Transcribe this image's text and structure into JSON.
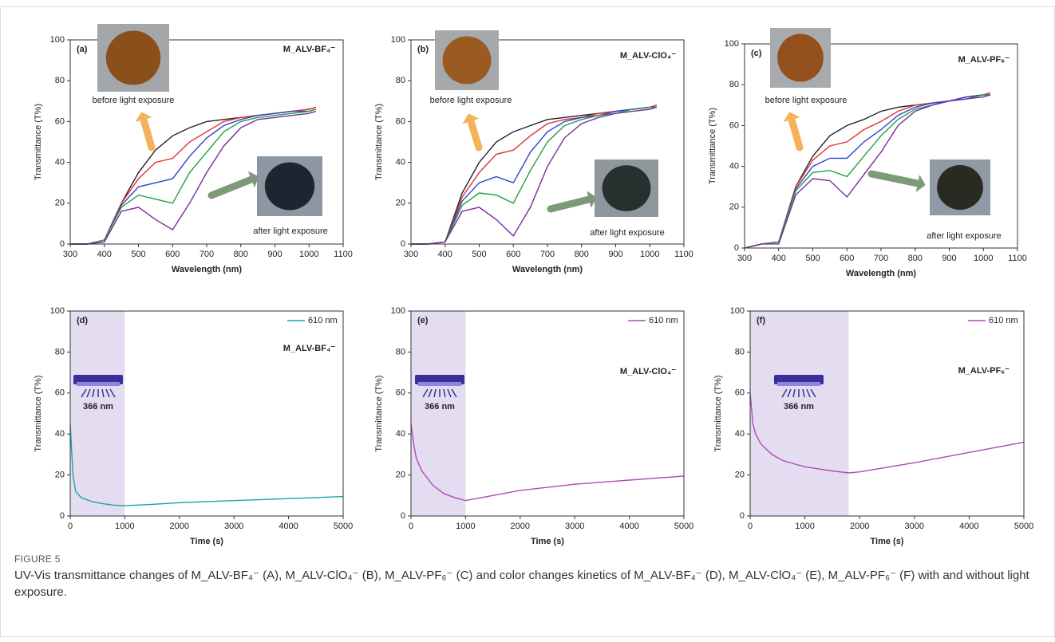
{
  "chart_data": [
    {
      "type": "line",
      "panel_label": "(a)",
      "title": "M_ALV-BF₄⁻",
      "xlabel": "Wavelength (nm)",
      "ylabel": "Transmittance (T%)",
      "x": [
        300,
        350,
        400,
        450,
        500,
        550,
        600,
        650,
        700,
        750,
        800,
        850,
        900,
        950,
        1000,
        1020
      ],
      "series": [
        {
          "color": "#222222",
          "values": [
            0,
            0,
            2,
            20,
            35,
            46,
            53,
            57,
            60,
            61,
            62,
            63,
            64,
            65,
            66,
            67
          ]
        },
        {
          "color": "#e03030",
          "values": [
            0,
            0,
            2,
            20,
            32,
            40,
            42,
            50,
            55,
            60,
            62,
            63,
            64,
            65,
            66,
            67
          ]
        },
        {
          "color": "#3040d0",
          "values": [
            0,
            0,
            2,
            19,
            28,
            30,
            32,
            43,
            52,
            58,
            61,
            63,
            64,
            65,
            65,
            66
          ]
        },
        {
          "color": "#20a040",
          "values": [
            0,
            0,
            2,
            18,
            24,
            22,
            20,
            35,
            45,
            55,
            60,
            62,
            63,
            64,
            65,
            66
          ]
        },
        {
          "color": "#7a2aa0",
          "values": [
            0,
            0,
            1,
            16,
            18,
            12,
            7,
            20,
            35,
            48,
            57,
            61,
            62,
            63,
            64,
            65
          ]
        }
      ],
      "xlim": [
        300,
        1100
      ],
      "xticks": [
        300,
        400,
        500,
        600,
        700,
        800,
        900,
        1000,
        1100
      ],
      "ylim": [
        0,
        100
      ],
      "yticks": [
        0,
        20,
        40,
        60,
        80,
        100
      ],
      "annotations": [
        "before light exposure",
        "after light exposure"
      ]
    },
    {
      "type": "line",
      "panel_label": "(b)",
      "title": "M_ALV-ClO₄⁻",
      "xlabel": "Wavelength (nm)",
      "ylabel": "Transmittance (T%)",
      "x": [
        300,
        350,
        400,
        450,
        500,
        550,
        600,
        650,
        700,
        750,
        800,
        850,
        900,
        950,
        1000,
        1020
      ],
      "series": [
        {
          "color": "#222222",
          "values": [
            0,
            0,
            1,
            25,
            40,
            50,
            55,
            58,
            61,
            62,
            63,
            64,
            65,
            66,
            67,
            68
          ]
        },
        {
          "color": "#e03030",
          "values": [
            0,
            0,
            1,
            23,
            35,
            44,
            46,
            53,
            59,
            61,
            62,
            64,
            65,
            66,
            67,
            68
          ]
        },
        {
          "color": "#3040d0",
          "values": [
            0,
            0,
            1,
            21,
            30,
            33,
            30,
            45,
            55,
            60,
            62,
            63,
            65,
            66,
            67,
            67
          ]
        },
        {
          "color": "#20a040",
          "values": [
            0,
            0,
            1,
            19,
            25,
            24,
            20,
            36,
            50,
            58,
            61,
            63,
            64,
            66,
            67,
            67
          ]
        },
        {
          "color": "#7a2aa0",
          "values": [
            0,
            0,
            1,
            16,
            18,
            12,
            4,
            18,
            38,
            52,
            59,
            62,
            64,
            65,
            66,
            67
          ]
        }
      ],
      "xlim": [
        300,
        1100
      ],
      "xticks": [
        300,
        400,
        500,
        600,
        700,
        800,
        900,
        1000,
        1100
      ],
      "ylim": [
        0,
        100
      ],
      "yticks": [
        0,
        20,
        40,
        60,
        80,
        100
      ],
      "annotations": [
        "before light exposure",
        "after light exposure"
      ]
    },
    {
      "type": "line",
      "panel_label": "(c)",
      "title": "M_ALV-PF₆⁻",
      "xlabel": "Wavelength (nm)",
      "ylabel": "Transmittance (T%)",
      "x": [
        300,
        350,
        400,
        450,
        500,
        550,
        600,
        650,
        700,
        750,
        800,
        850,
        900,
        950,
        1000,
        1020
      ],
      "series": [
        {
          "color": "#222222",
          "values": [
            0,
            2,
            3,
            30,
            45,
            55,
            60,
            63,
            67,
            69,
            70,
            71,
            72,
            74,
            75,
            76
          ]
        },
        {
          "color": "#e03030",
          "values": [
            0,
            2,
            3,
            30,
            43,
            50,
            52,
            58,
            62,
            67,
            70,
            71,
            72,
            74,
            75,
            76
          ]
        },
        {
          "color": "#3040d0",
          "values": [
            0,
            2,
            3,
            29,
            40,
            44,
            44,
            52,
            58,
            65,
            69,
            71,
            72,
            74,
            75,
            75
          ]
        },
        {
          "color": "#20a040",
          "values": [
            0,
            2,
            3,
            28,
            37,
            38,
            35,
            45,
            55,
            63,
            68,
            70,
            72,
            73,
            75,
            75
          ]
        },
        {
          "color": "#7a2aa0",
          "values": [
            0,
            2,
            2,
            26,
            34,
            33,
            25,
            36,
            47,
            60,
            67,
            70,
            72,
            73,
            74,
            75
          ]
        }
      ],
      "xlim": [
        300,
        1100
      ],
      "xticks": [
        300,
        400,
        500,
        600,
        700,
        800,
        900,
        1000,
        1100
      ],
      "ylim": [
        0,
        100
      ],
      "yticks": [
        0,
        20,
        40,
        60,
        80,
        100
      ],
      "annotations": [
        "before light exposure",
        "after light exposure"
      ]
    },
    {
      "type": "line",
      "panel_label": "(d)",
      "title": "M_ALV-BF₄⁻",
      "xlabel": "Time (s)",
      "ylabel": "Transmittance (T%)",
      "x": [
        0,
        50,
        100,
        200,
        400,
        600,
        800,
        1000,
        1500,
        2000,
        3000,
        4000,
        5000
      ],
      "series": [
        {
          "name": "610 nm",
          "color": "#1aa3a3",
          "values": [
            45,
            20,
            12,
            9,
            7,
            6,
            5.3,
            5,
            5.7,
            6.5,
            7.5,
            8.5,
            9.5
          ]
        }
      ],
      "shaded_region": [
        0,
        1000
      ],
      "shade_color": "#e4ddf2",
      "lamp_label": "366 nm",
      "xlim": [
        0,
        5000
      ],
      "xticks": [
        0,
        1000,
        2000,
        3000,
        4000,
        5000
      ],
      "ylim": [
        0,
        100
      ],
      "yticks": [
        0,
        20,
        40,
        60,
        80,
        100
      ]
    },
    {
      "type": "line",
      "panel_label": "(e)",
      "title": "M_ALV-ClO₄⁻",
      "xlabel": "Time (s)",
      "ylabel": "Transmittance (T%)",
      "x": [
        0,
        50,
        100,
        200,
        400,
        600,
        800,
        1000,
        1500,
        2000,
        3000,
        4000,
        5000
      ],
      "series": [
        {
          "name": "610 nm",
          "color": "#b04ab8",
          "values": [
            45,
            35,
            28,
            22,
            15,
            11,
            9,
            7.5,
            10,
            12.5,
            15.5,
            17.5,
            19.5
          ]
        }
      ],
      "shaded_region": [
        0,
        1000
      ],
      "shade_color": "#e4ddf2",
      "lamp_label": "366 nm",
      "xlim": [
        0,
        5000
      ],
      "xticks": [
        0,
        1000,
        2000,
        3000,
        4000,
        5000
      ],
      "ylim": [
        0,
        100
      ],
      "yticks": [
        0,
        20,
        40,
        60,
        80,
        100
      ]
    },
    {
      "type": "line",
      "panel_label": "(f)",
      "title": "M_ALV-PF₆⁻",
      "xlabel": "Time (s)",
      "ylabel": "Transmittance (T%)",
      "x": [
        0,
        50,
        100,
        200,
        400,
        600,
        800,
        1000,
        1500,
        1800,
        2000,
        3000,
        4000,
        5000
      ],
      "series": [
        {
          "name": "610 nm",
          "color": "#b04ab8",
          "values": [
            60,
            45,
            40,
            35,
            30,
            27,
            25.5,
            24,
            22,
            21,
            21.5,
            26,
            31,
            36
          ]
        }
      ],
      "shaded_region": [
        0,
        1800
      ],
      "shade_color": "#e4ddf2",
      "lamp_label": "366 nm",
      "xlim": [
        0,
        5000
      ],
      "xticks": [
        0,
        1000,
        2000,
        3000,
        4000,
        5000
      ],
      "ylim": [
        0,
        100
      ],
      "yticks": [
        0,
        20,
        40,
        60,
        80,
        100
      ]
    }
  ],
  "caption": {
    "label": "FIGURE 5",
    "text": "UV-Vis transmittance changes of M_ALV-BF₄⁻ (A), M_ALV-ClO₄⁻ (B), M_ALV-PF₆⁻ (C) and color changes kinetics of M_ALV-BF₄⁻ (D), M_ALV-ClO₄⁻ (E), M_ALV-PF₆⁻ (F) with and without light exposure."
  }
}
